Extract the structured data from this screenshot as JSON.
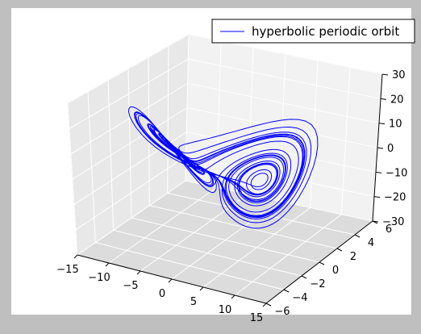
{
  "chart_data": {
    "type": "line",
    "projection": "3d",
    "title": "",
    "xlabel": "",
    "ylabel": "",
    "zlabel": "",
    "grid": true,
    "legend": {
      "placement": "top-right"
    },
    "series": [
      {
        "name": "hyperbolic periodic orbit",
        "color": "#0000ff",
        "kind": "lorenz-attractor"
      }
    ],
    "axes": {
      "x": {
        "range": [
          -15,
          15
        ],
        "ticks": [
          -15,
          -10,
          -5,
          0,
          5,
          10,
          15
        ],
        "tick_labels": [
          "−15",
          "−10",
          "−5",
          "0",
          "5",
          "10",
          "15"
        ]
      },
      "y": {
        "range": [
          -6,
          6
        ],
        "ticks": [
          -6,
          -4,
          -2,
          0,
          2,
          4,
          6
        ],
        "tick_labels": [
          "−6",
          "−4",
          "−2",
          "0",
          "2",
          "4",
          "6"
        ]
      },
      "z": {
        "range": [
          -30,
          30
        ],
        "ticks": [
          -30,
          -20,
          -10,
          0,
          10,
          20,
          30
        ],
        "tick_labels": [
          "−30",
          "−20",
          "−10",
          "0",
          "10",
          "20",
          "30"
        ]
      }
    }
  }
}
